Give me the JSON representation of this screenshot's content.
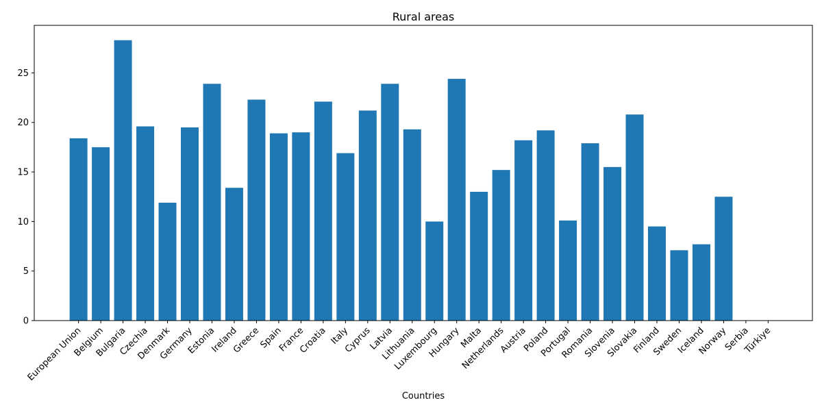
{
  "chart_data": {
    "type": "bar",
    "title": "Rural areas",
    "xlabel": "Countries",
    "ylabel": "",
    "ylim": [
      0,
      29.8
    ],
    "yticks": [
      0,
      5,
      10,
      15,
      20,
      25
    ],
    "grid": false,
    "bar_color": "#1f77b4",
    "categories": [
      "European Union",
      "Belgium",
      "Bulgaria",
      "Czechia",
      "Denmark",
      "Germany",
      "Estonia",
      "Ireland",
      "Greece",
      "Spain",
      "France",
      "Croatia",
      "Italy",
      "Cyprus",
      "Latvia",
      "Lithuania",
      "Luxembourg",
      "Hungary",
      "Malta",
      "Netherlands",
      "Austria",
      "Poland",
      "Portugal",
      "Romania",
      "Slovenia",
      "Slovakia",
      "Finland",
      "Sweden",
      "Iceland",
      "Norway",
      "Serbia",
      "Türkiye"
    ],
    "values": [
      18.4,
      17.5,
      28.3,
      19.6,
      11.9,
      19.5,
      23.9,
      13.4,
      22.3,
      18.9,
      19.0,
      22.1,
      16.9,
      21.2,
      23.9,
      19.3,
      10.0,
      24.4,
      13.0,
      15.2,
      18.2,
      19.2,
      10.1,
      17.9,
      15.5,
      20.8,
      9.5,
      7.1,
      7.7,
      12.5,
      null,
      null
    ]
  }
}
